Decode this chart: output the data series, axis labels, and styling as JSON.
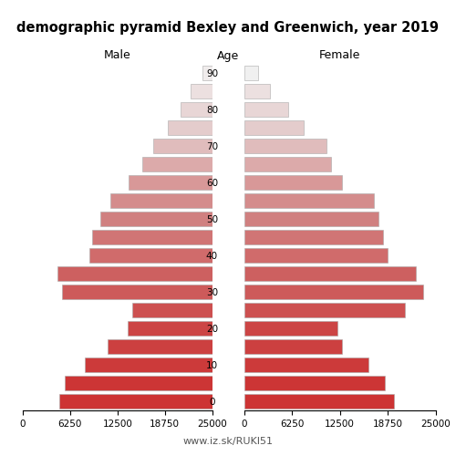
{
  "title": "demographic pyramid Bexley and Greenwich, year 2019",
  "age_labels": [
    "0",
    "",
    "10",
    "",
    "20",
    "",
    "30",
    "",
    "40",
    "",
    "50",
    "",
    "60",
    "",
    "70",
    "",
    "80",
    "",
    "90"
  ],
  "age_tick_positions": [
    0,
    1,
    2,
    3,
    4,
    5,
    6,
    7,
    8,
    9,
    10,
    11,
    12,
    13,
    14,
    15,
    16,
    17,
    18
  ],
  "male_vals": [
    20200,
    19400,
    16800,
    13800,
    11200,
    10600,
    19800,
    20400,
    16200,
    15800,
    14800,
    13400,
    11000,
    9200,
    7800,
    5800,
    4200,
    2800,
    1300
  ],
  "female_vals": [
    19600,
    18400,
    16200,
    12800,
    12200,
    21000,
    23400,
    22400,
    18800,
    18200,
    17600,
    17000,
    12800,
    11400,
    10800,
    7800,
    5800,
    3400,
    1900
  ],
  "male_bar_colors": [
    "#cd3333",
    "#cc3535",
    "#cc3a3a",
    "#cc4040",
    "#cc4545",
    "#cd5050",
    "#cd5a5a",
    "#cd6060",
    "#d06b6b",
    "#d07575",
    "#d08080",
    "#d48c8c",
    "#d89898",
    "#dcaaaa",
    "#e0bcbc",
    "#e4cccc",
    "#e8d6d6",
    "#ece0e0",
    "#f0ecec"
  ],
  "female_bar_colors": [
    "#cd3333",
    "#cc3535",
    "#cc3a3a",
    "#cc4040",
    "#cc4545",
    "#cd5050",
    "#cd5a5a",
    "#cd6060",
    "#d06b6b",
    "#d07575",
    "#d08080",
    "#d48c8c",
    "#d89898",
    "#dcaaaa",
    "#e0bcbc",
    "#e4cccc",
    "#e8d6d6",
    "#ece0e0",
    "#f0f0f0"
  ],
  "xlim": 25000,
  "xlabel_left": "Male",
  "xlabel_right": "Female",
  "xlabel_center": "Age",
  "footer": "www.iz.sk/RUKI51",
  "bar_height": 0.8,
  "xtick_vals": [
    0,
    6250,
    12500,
    18750,
    25000
  ],
  "bg_color": "#ffffff",
  "spine_color": "#888888",
  "edge_color": "#aaaaaa"
}
